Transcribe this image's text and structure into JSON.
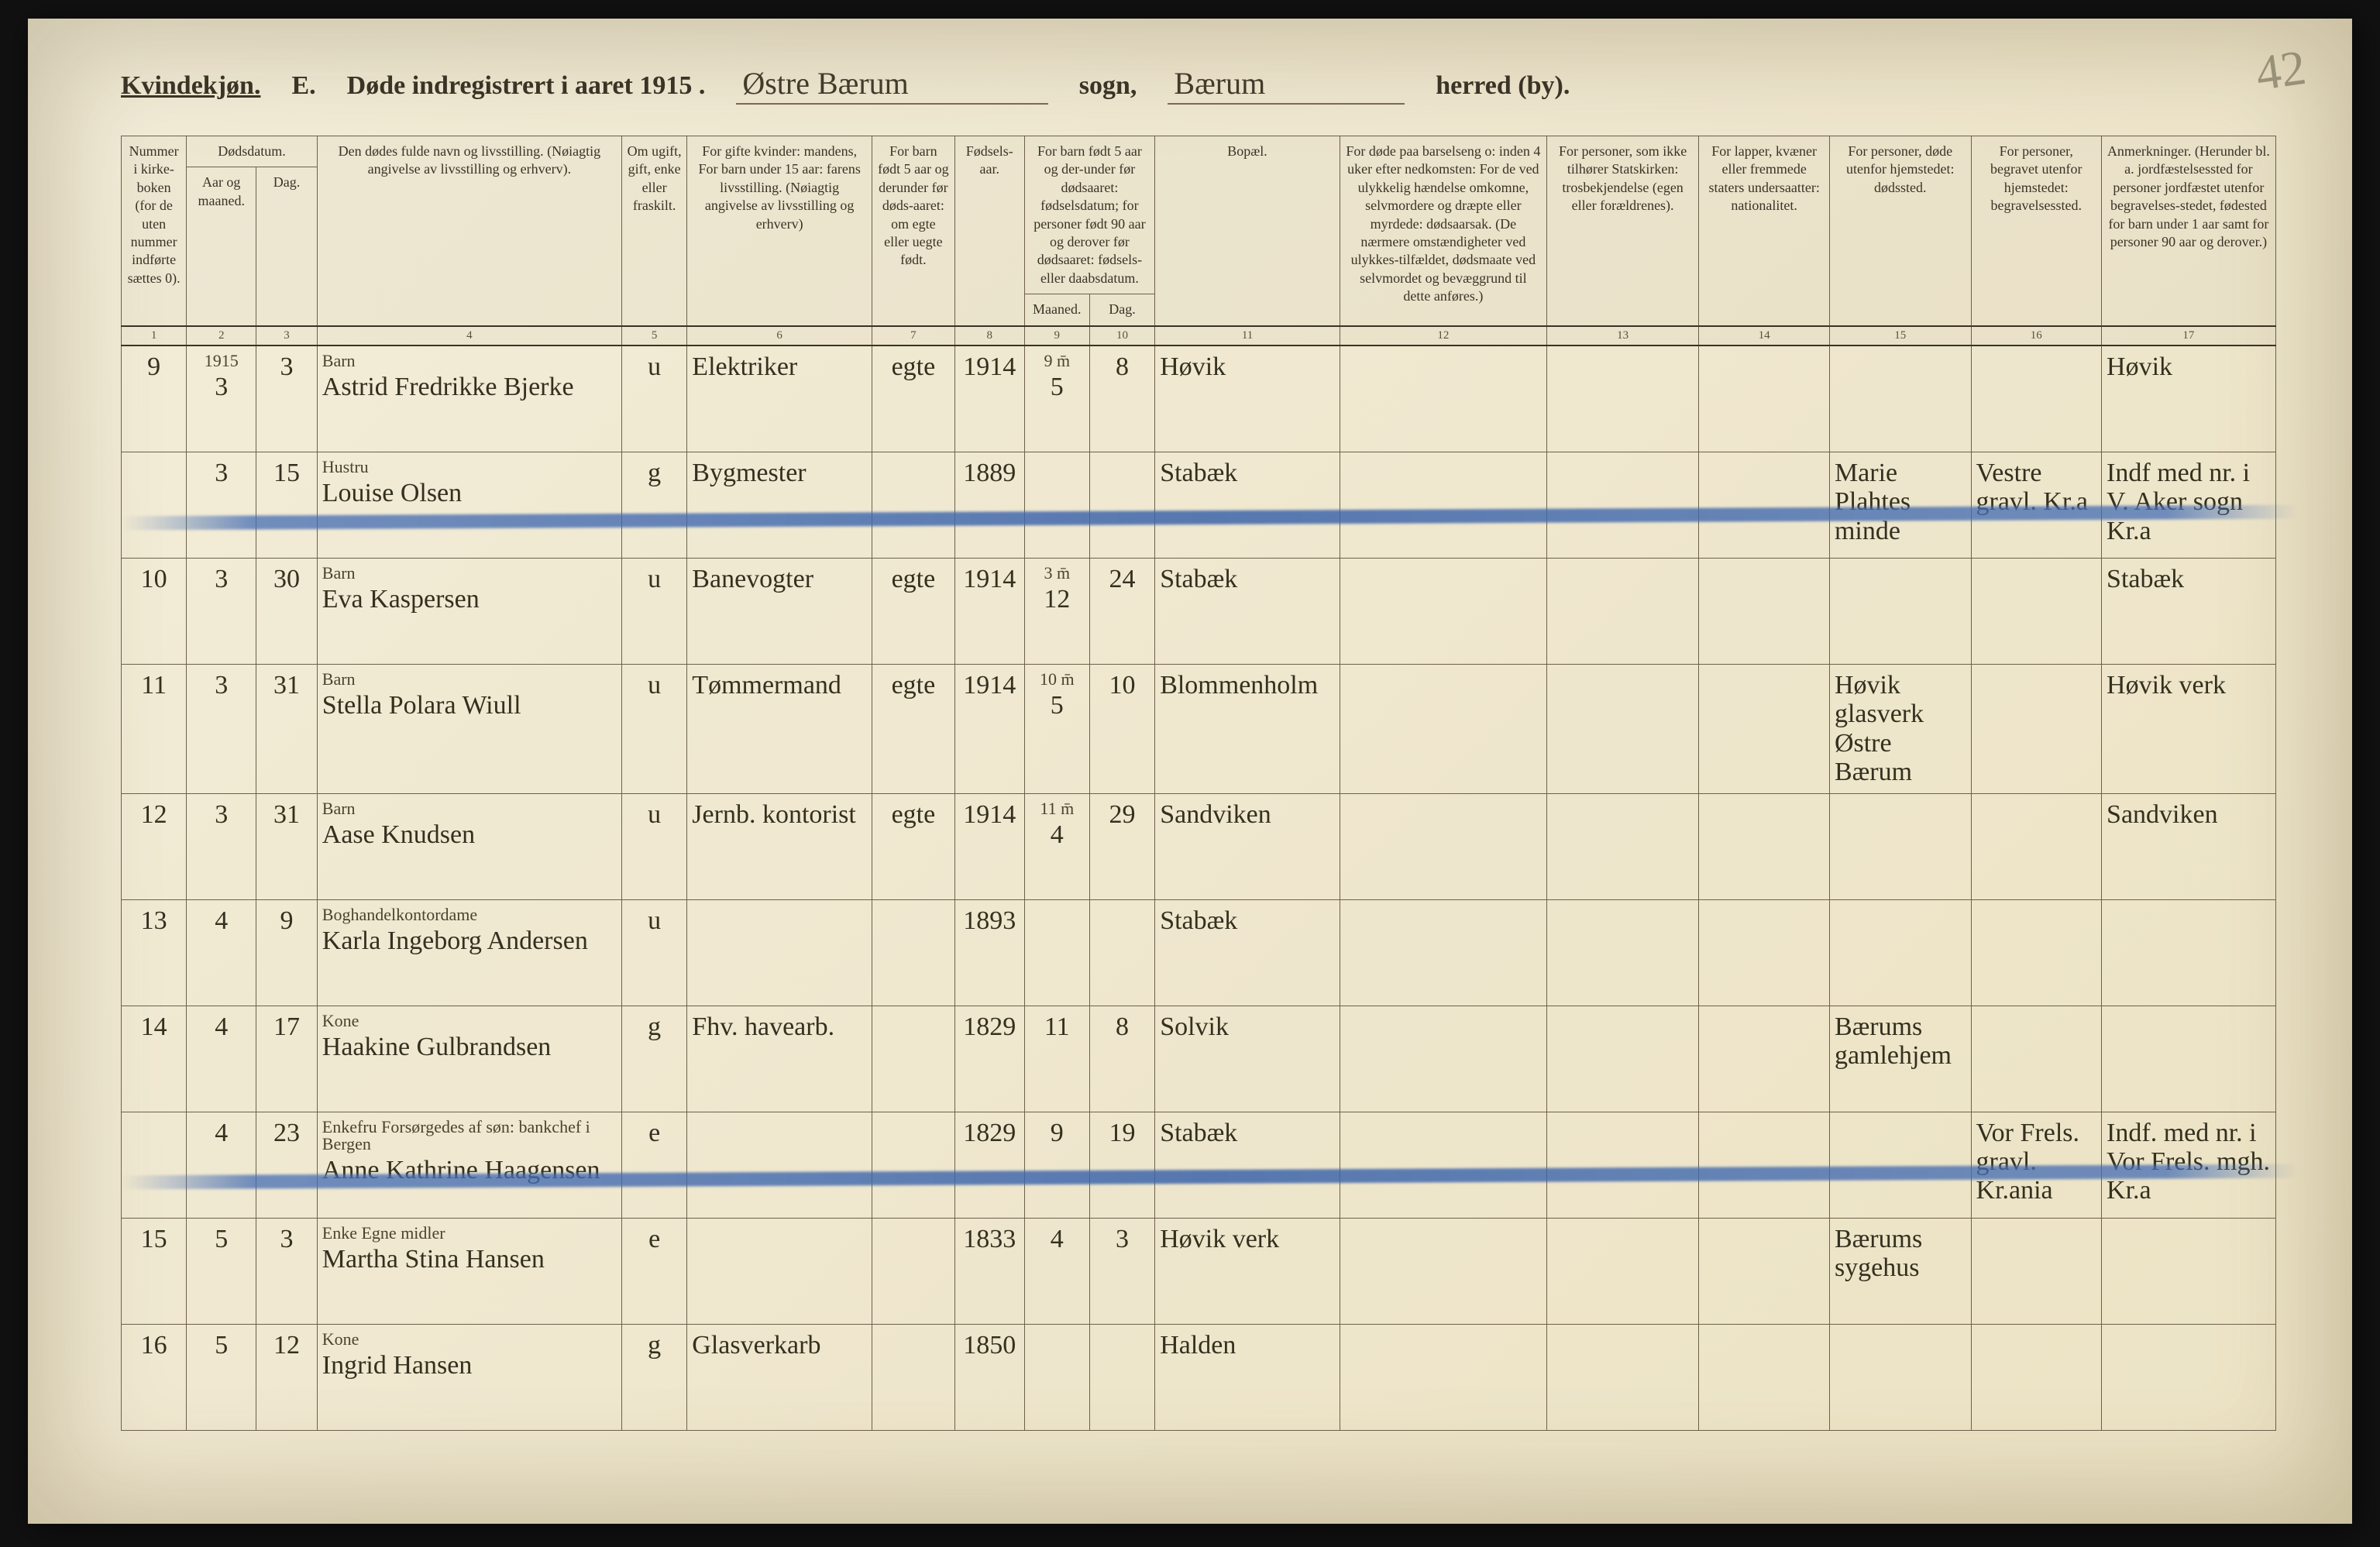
{
  "page_number": "42",
  "heading": {
    "kjonn": "Kvindekjøn.",
    "section": "E.",
    "printed_pre": "Døde indregistrert i aaret 191",
    "year_suffix": "5 .",
    "sogn_value": "Østre Bærum",
    "sogn_label": "sogn,",
    "herred_value": "Bærum",
    "herred_label": "herred (by)."
  },
  "header": {
    "group": {
      "nummer": "Nummer i kirke-boken (for de uten nummer indførte sættes 0).",
      "dodsdatum": "Dødsdatum.",
      "fodsels_sub": "For barn født 5 aar og der-under før dødsaaret: fødselsdatum; for personer født 90 aar og derover før dødsaaret: fødsels- eller daabsdatum.",
      "maaned": "Maaned.",
      "dag": "Dag."
    },
    "cols": {
      "aar": "Aar og maaned.",
      "dag": "Dag.",
      "navn": "Den dødes fulde navn og livsstilling. (Nøiagtig angivelse av livsstilling og erhverv).",
      "ugift": "Om ugift, gift, enke eller fraskilt.",
      "mandens": "For gifte kvinder: mandens, For barn under 15 aar: farens livsstilling. (Nøiagtig angivelse av livsstilling og erhverv)",
      "barn5": "For barn født 5 aar og derunder før døds-aaret: om egte eller uegte født.",
      "faar": "Fødsels-aar.",
      "bopal": "Bopæl.",
      "barsel": "For døde paa barselseng o: inden 4 uker efter nedkomsten: For de ved ulykkelig hændelse omkomne, selvmordere og dræpte eller myrdede: dødsaarsak. (De nærmere omstændigheter ved ulykkes-tilfældet, dødsmaate ved selvmordet og bevæggrund til dette anføres.)",
      "tros": "For personer, som ikke tilhører Statskirken: trosbekjendelse (egen eller forældrenes).",
      "nasj": "For lapper, kvæner eller fremmede staters undersaatter: nationalitet.",
      "dodssted": "For personer, døde utenfor hjemstedet: dødssted.",
      "begrsted": "For personer, begravet utenfor hjemstedet: begravelsessted.",
      "anm": "Anmerkninger. (Herunder bl. a. jordfæstelsessted for personer jordfæstet utenfor begravelses-stedet, fødested for barn under 1 aar samt for personer 90 aar og derover.)"
    },
    "nums": [
      "1",
      "2",
      "3",
      "4",
      "5",
      "6",
      "7",
      "8",
      "9",
      "10",
      "11",
      "12",
      "13",
      "14",
      "15",
      "16",
      "17"
    ]
  },
  "rows": [
    {
      "n": "9",
      "aar_top": "1915",
      "aar": "3",
      "dag": "3",
      "name_sup": "Barn",
      "name": "Astrid Fredrikke Bjerke",
      "ug": "u",
      "mand": "Elektriker",
      "barn5": "egte",
      "faar": "1914",
      "fm_sup": "9 m̄",
      "fm": "5",
      "fd": "8",
      "bop": "Høvik",
      "bars": "",
      "tros": "",
      "nat": "",
      "dsted": "",
      "begr": "",
      "anm": "Høvik",
      "struck": false
    },
    {
      "n": "",
      "aar": "3",
      "dag": "15",
      "name_sup": "Hustru",
      "name": "Louise Olsen",
      "ug": "g",
      "mand": "Bygmester",
      "barn5": "",
      "faar": "1889",
      "fm": "",
      "fd": "",
      "bop": "Stabæk",
      "bars": "",
      "tros": "",
      "nat": "",
      "dsted": "Marie Plahtes minde",
      "begr": "Vestre gravl. Kr.a",
      "anm": "Indf med nr. i V. Aker sogn Kr.a",
      "struck": true
    },
    {
      "n": "10",
      "aar": "3",
      "dag": "30",
      "name_sup": "Barn",
      "name": "Eva Kaspersen",
      "ug": "u",
      "mand": "Banevogter",
      "barn5": "egte",
      "faar": "1914",
      "fm_sup": "3 m̄",
      "fm": "12",
      "fd": "24",
      "bop": "Stabæk",
      "bars": "",
      "tros": "",
      "nat": "",
      "dsted": "",
      "begr": "",
      "anm": "Stabæk",
      "struck": false
    },
    {
      "n": "11",
      "aar": "3",
      "dag": "31",
      "name_sup": "Barn",
      "name": "Stella Polara Wiull",
      "ug": "u",
      "mand": "Tømmermand",
      "barn5": "egte",
      "faar": "1914",
      "fm_sup": "10 m̄",
      "fm": "5",
      "fd": "10",
      "bop": "Blommenholm",
      "bars": "",
      "tros": "",
      "nat": "",
      "dsted": "Høvik glasverk Østre Bærum",
      "begr": "",
      "anm": "Høvik verk",
      "struck": false
    },
    {
      "n": "12",
      "aar": "3",
      "dag": "31",
      "name_sup": "Barn",
      "name": "Aase Knudsen",
      "ug": "u",
      "mand": "Jernb. kontorist",
      "barn5": "egte",
      "faar": "1914",
      "fm_sup": "11 m̄",
      "fm": "4",
      "fd": "29",
      "bop": "Sandviken",
      "bars": "",
      "tros": "",
      "nat": "",
      "dsted": "",
      "begr": "",
      "anm": "Sandviken",
      "struck": false
    },
    {
      "n": "13",
      "aar": "4",
      "dag": "9",
      "name_sup": "Boghandelkontordame",
      "name": "Karla Ingeborg Andersen",
      "ug": "u",
      "mand": "",
      "barn5": "",
      "faar": "1893",
      "fm": "",
      "fd": "",
      "bop": "Stabæk",
      "bars": "",
      "tros": "",
      "nat": "",
      "dsted": "",
      "begr": "",
      "anm": "",
      "struck": false
    },
    {
      "n": "14",
      "aar": "4",
      "dag": "17",
      "name_sup": "Kone",
      "name": "Haakine Gulbrandsen",
      "ug": "g",
      "mand": "Fhv. havearb.",
      "barn5": "",
      "faar": "1829",
      "fm": "11",
      "fd": "8",
      "bop": "Solvik",
      "bars": "",
      "tros": "",
      "nat": "",
      "dsted": "Bærums gamlehjem",
      "begr": "",
      "anm": "",
      "struck": false
    },
    {
      "n": "",
      "aar": "4",
      "dag": "23",
      "name_sup": "Enkefru   Forsørgedes af søn: bankchef i Bergen",
      "name": "Anne Kathrine Haagensen",
      "ug": "e",
      "mand": "",
      "barn5": "",
      "faar": "1829",
      "fm": "9",
      "fd": "19",
      "bop": "Stabæk",
      "bars": "",
      "tros": "",
      "nat": "",
      "dsted": "",
      "begr": "Vor Frels. gravl. Kr.ania",
      "anm": "Indf. med nr. i Vor Frels. mgh. Kr.a",
      "struck": true
    },
    {
      "n": "15",
      "aar": "5",
      "dag": "3",
      "name_sup": "Enke          Egne midler",
      "name": "Martha Stina Hansen",
      "ug": "e",
      "mand": "",
      "barn5": "",
      "faar": "1833",
      "fm": "4",
      "fd": "3",
      "bop": "Høvik verk",
      "bars": "",
      "tros": "",
      "nat": "",
      "dsted": "Bærums sygehus",
      "begr": "",
      "anm": "",
      "struck": false
    },
    {
      "n": "16",
      "aar": "5",
      "dag": "12",
      "name_sup": "Kone",
      "name": "Ingrid Hansen",
      "ug": "g",
      "mand": "Glasverkarb",
      "barn5": "",
      "faar": "1850",
      "fm": "",
      "fd": "",
      "bop": "Halden",
      "bars": "",
      "tros": "",
      "nat": "",
      "dsted": "",
      "begr": "",
      "anm": "",
      "struck": false
    }
  ]
}
